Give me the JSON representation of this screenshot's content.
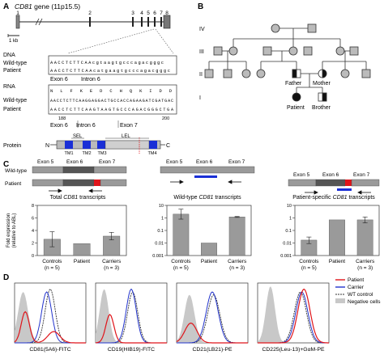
{
  "panelA": {
    "letter": "A",
    "gene_title_prefix": "CD81",
    "gene_title_suffix": " gene (11p15.5)",
    "exon_numbers": [
      "1",
      "2",
      "3",
      "4",
      "5",
      "6",
      "7",
      "8"
    ],
    "scale_label": "1 kb",
    "dna": {
      "label": "DNA",
      "wt_label": "Wild-type",
      "pt_label": "Patient",
      "wt_seq": "AACCTCTTCAAcgtaagtgcccagacgggc",
      "pt_seq": "AACCTCTTCAAcatgaagtgcccagacgggc",
      "exon_label": "Exon 6",
      "intron_label": "Intron 6"
    },
    "rna": {
      "label": "RNA",
      "aa_seq": "N L F K E D C H Q K I D D",
      "wt_label": "Wild-type",
      "pt_label": "Patient",
      "wt_seq": "AACCTCTTCAAGGAGGACTGCCACCAGAAGATCGATGAC",
      "pt_seq": "AACCTCTTCAAGTAAGTGCCCAGACGGGCTGA",
      "pos1": "188",
      "pos2": "200",
      "exon6": "Exon 6",
      "intron6": "Intron 6",
      "exon7": "Exon 7"
    },
    "protein": {
      "label": "Protein",
      "n_term": "N",
      "c_term": "C",
      "sel": "SEL",
      "lel": "LEL",
      "tm": [
        "TM1",
        "TM2",
        "TM3",
        "TM4"
      ]
    }
  },
  "panelB": {
    "letter": "B",
    "generations": [
      "IV",
      "III",
      "II",
      "I"
    ],
    "father": "Father",
    "mother": "Mother",
    "patient": "Patient",
    "brother": "Brother"
  },
  "panelC": {
    "letter": "C",
    "exon5": "Exon 5",
    "exon6": "Exon 6",
    "exon7": "Exon 7",
    "wt_label": "Wild-type",
    "pt_label": "Patient",
    "ylabel_1": "Fold expression",
    "ylabel_2": "(relative to ABL)",
    "x_labels": [
      "Controls",
      "Patient",
      "Carriers"
    ],
    "n_labels": [
      "(n = 5)",
      "",
      "(n = 3)"
    ],
    "colors": {
      "bar": "#9a9a9a",
      "blue": "#1a2fd6",
      "red": "#e0141a"
    }
  },
  "chart_data": [
    {
      "type": "bar",
      "title_prefix": "Total ",
      "title_italic": "CD81",
      "title_suffix": " transcripts",
      "categories": [
        "Controls",
        "Patient",
        "Carriers"
      ],
      "values": [
        2.6,
        1.9,
        3.1
      ],
      "errors": [
        1.2,
        0,
        0.6
      ],
      "ylim": [
        0,
        8
      ],
      "ticks": [
        "0",
        "2",
        "4",
        "6",
        "8"
      ],
      "yscale": "linear"
    },
    {
      "type": "bar",
      "title_prefix": "Wild-type ",
      "title_italic": "CD81",
      "title_suffix": " transcripts",
      "categories": [
        "Controls",
        "Patient",
        "Carriers"
      ],
      "values": [
        2.0,
        0.01,
        1.2
      ],
      "errors_low": [
        0.8,
        0.01,
        1.1
      ],
      "errors_high": [
        5.0,
        0.01,
        1.3
      ],
      "ylim": [
        0.001,
        10
      ],
      "ticks": [
        "0.001",
        "0.01",
        "0.1",
        "1",
        "10"
      ],
      "yscale": "log"
    },
    {
      "type": "bar",
      "title_prefix": "Patient-specific ",
      "title_italic": "CD81",
      "title_suffix": " transcripts",
      "categories": [
        "Controls",
        "Patient",
        "Carriers"
      ],
      "values": [
        0.017,
        0.7,
        0.7
      ],
      "errors_low": [
        0.009,
        0.7,
        0.4
      ],
      "errors_high": [
        0.03,
        0.7,
        1.2
      ],
      "ylim": [
        0.001,
        10
      ],
      "ticks": [
        "0.001",
        "0.01",
        "0.1",
        "1",
        "10"
      ],
      "yscale": "log"
    }
  ],
  "panelD": {
    "letter": "D",
    "xlabels": [
      "CD81(5A6)-FITC",
      "CD19(HIB19)-FITC",
      "CD21(LB21)-PE",
      "CD225(Leu-13)+GαM-PE"
    ],
    "legend": [
      {
        "label": "Patient",
        "color": "#e0141a"
      },
      {
        "label": "Carrier",
        "color": "#2233cc"
      },
      {
        "label": "WT control",
        "color": "#333333"
      },
      {
        "label": "Negative cells",
        "color": "#c8c8c8"
      }
    ]
  }
}
